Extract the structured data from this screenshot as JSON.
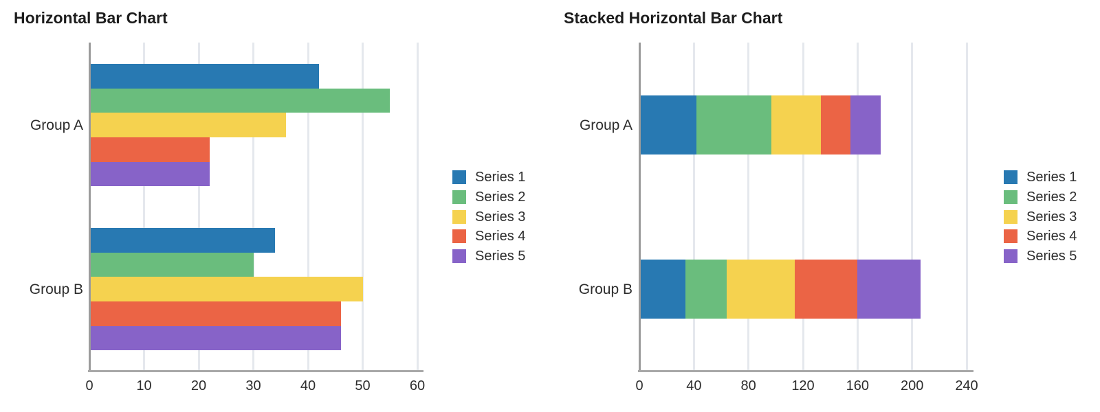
{
  "chart_data": [
    {
      "type": "bar",
      "variant": "grouped-horizontal",
      "title": "Horizontal Bar Chart",
      "categories": [
        "Group A",
        "Group B"
      ],
      "series": [
        {
          "name": "Series 1",
          "color": "#2879b2",
          "values": [
            42,
            34
          ]
        },
        {
          "name": "Series 2",
          "color": "#6abd7d",
          "values": [
            55,
            30
          ]
        },
        {
          "name": "Series 3",
          "color": "#f5d24f",
          "values": [
            36,
            50
          ]
        },
        {
          "name": "Series 4",
          "color": "#eb6445",
          "values": [
            22,
            46
          ]
        },
        {
          "name": "Series 5",
          "color": "#8763c8",
          "values": [
            22,
            46
          ]
        }
      ],
      "xlabel": "",
      "ylabel": "",
      "xlim": [
        0,
        60
      ],
      "x_ticks": [
        0,
        10,
        20,
        30,
        40,
        50,
        60
      ],
      "grid": "vertical",
      "legend_position": "right"
    },
    {
      "type": "bar",
      "variant": "stacked-horizontal",
      "title": "Stacked Horizontal Bar Chart",
      "categories": [
        "Group A",
        "Group B"
      ],
      "series": [
        {
          "name": "Series 1",
          "color": "#2879b2",
          "values": [
            42,
            34
          ]
        },
        {
          "name": "Series 2",
          "color": "#6abd7d",
          "values": [
            55,
            30
          ]
        },
        {
          "name": "Series 3",
          "color": "#f5d24f",
          "values": [
            36,
            50
          ]
        },
        {
          "name": "Series 4",
          "color": "#eb6445",
          "values": [
            22,
            46
          ]
        },
        {
          "name": "Series 5",
          "color": "#8763c8",
          "values": [
            22,
            46
          ]
        }
      ],
      "stack_totals": [
        177,
        206
      ],
      "xlabel": "",
      "ylabel": "",
      "xlim": [
        0,
        240
      ],
      "x_ticks": [
        0,
        40,
        80,
        120,
        160,
        200,
        240
      ],
      "grid": "vertical",
      "legend_position": "right"
    }
  ]
}
